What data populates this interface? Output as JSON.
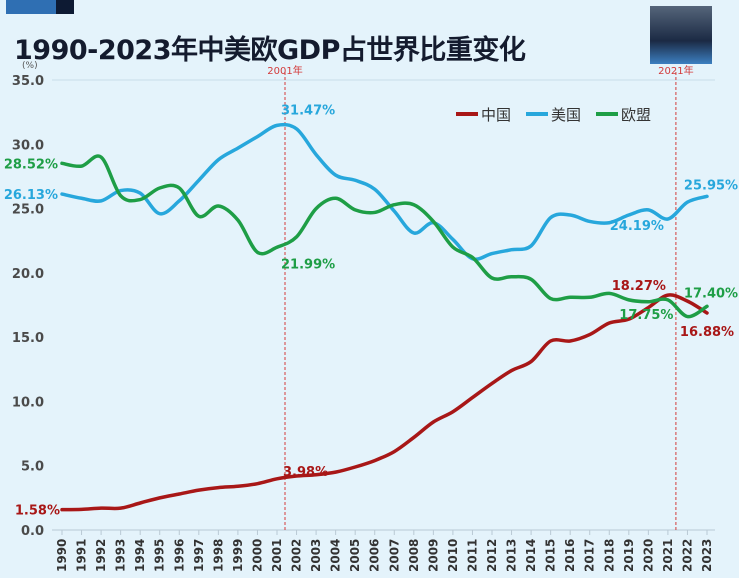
{
  "title": "1990-2023年中美欧GDP占世界比重变化",
  "colors": {
    "china": "#a81717",
    "usa": "#27a7dc",
    "eu": "#1e9e46",
    "marker": "#d33b3b",
    "background": "#e4f3fb"
  },
  "chart_data": {
    "type": "line",
    "title": "1990-2023年中美欧GDP占世界比重变化",
    "ylabel": "(%)",
    "ylim": [
      0,
      35
    ],
    "yticks": [
      "0.0",
      "5.0",
      "10.0",
      "15.0",
      "20.0",
      "25.0",
      "30.0",
      "35.0"
    ],
    "grid": "horizontal-top-only",
    "legend": "top-right",
    "x": [
      1990,
      1991,
      1992,
      1993,
      1994,
      1995,
      1996,
      1997,
      1998,
      1999,
      2000,
      2001,
      2002,
      2003,
      2004,
      2005,
      2006,
      2007,
      2008,
      2009,
      2010,
      2011,
      2012,
      2013,
      2014,
      2015,
      2016,
      2017,
      2018,
      2019,
      2020,
      2021,
      2022,
      2023
    ],
    "markers": [
      {
        "x": 2001,
        "label": "2001年"
      },
      {
        "x": 2021,
        "label": "2021年"
      }
    ],
    "series": [
      {
        "name": "中国",
        "key": "china",
        "values": [
          1.58,
          1.6,
          1.7,
          1.7,
          2.1,
          2.5,
          2.8,
          3.1,
          3.3,
          3.4,
          3.6,
          3.98,
          4.2,
          4.3,
          4.5,
          4.9,
          5.4,
          6.1,
          7.2,
          8.4,
          9.2,
          10.3,
          11.4,
          12.4,
          13.1,
          14.7,
          14.7,
          15.2,
          16.1,
          16.4,
          17.3,
          18.27,
          17.8,
          16.88
        ],
        "labels": [
          {
            "x": 1990,
            "text": "1.58%"
          },
          {
            "x": 2001,
            "text": "3.98%"
          },
          {
            "x": 2021,
            "text": "18.27%"
          },
          {
            "x": 2023,
            "text": "16.88%"
          }
        ]
      },
      {
        "name": "美国",
        "key": "usa",
        "values": [
          26.13,
          25.8,
          25.6,
          26.4,
          26.2,
          24.6,
          25.6,
          27.2,
          28.8,
          29.7,
          30.6,
          31.47,
          31.2,
          29.2,
          27.6,
          27.2,
          26.5,
          24.8,
          23.1,
          23.9,
          22.6,
          21.1,
          21.5,
          21.8,
          22.1,
          24.3,
          24.5,
          24.0,
          23.9,
          24.5,
          24.9,
          24.19,
          25.5,
          25.95
        ],
        "labels": [
          {
            "x": 1990,
            "text": "26.13%"
          },
          {
            "x": 2001,
            "text": "31.47%"
          },
          {
            "x": 2021,
            "text": "24.19%"
          },
          {
            "x": 2023,
            "text": "25.95%"
          }
        ]
      },
      {
        "name": "欧盟",
        "key": "eu",
        "values": [
          28.52,
          28.3,
          29.0,
          26.0,
          25.7,
          26.6,
          26.6,
          24.4,
          25.2,
          24.1,
          21.6,
          21.99,
          22.8,
          25.0,
          25.8,
          24.9,
          24.7,
          25.3,
          25.3,
          24.0,
          22.0,
          21.2,
          19.6,
          19.7,
          19.5,
          18.0,
          18.1,
          18.1,
          18.4,
          17.9,
          17.75,
          17.9,
          16.6,
          17.4
        ],
        "labels": [
          {
            "x": 1990,
            "text": "28.52%"
          },
          {
            "x": 2001,
            "text": "21.99%"
          },
          {
            "x": 2020,
            "text": "17.75%"
          },
          {
            "x": 2023,
            "text": "17.40%"
          }
        ]
      }
    ]
  }
}
